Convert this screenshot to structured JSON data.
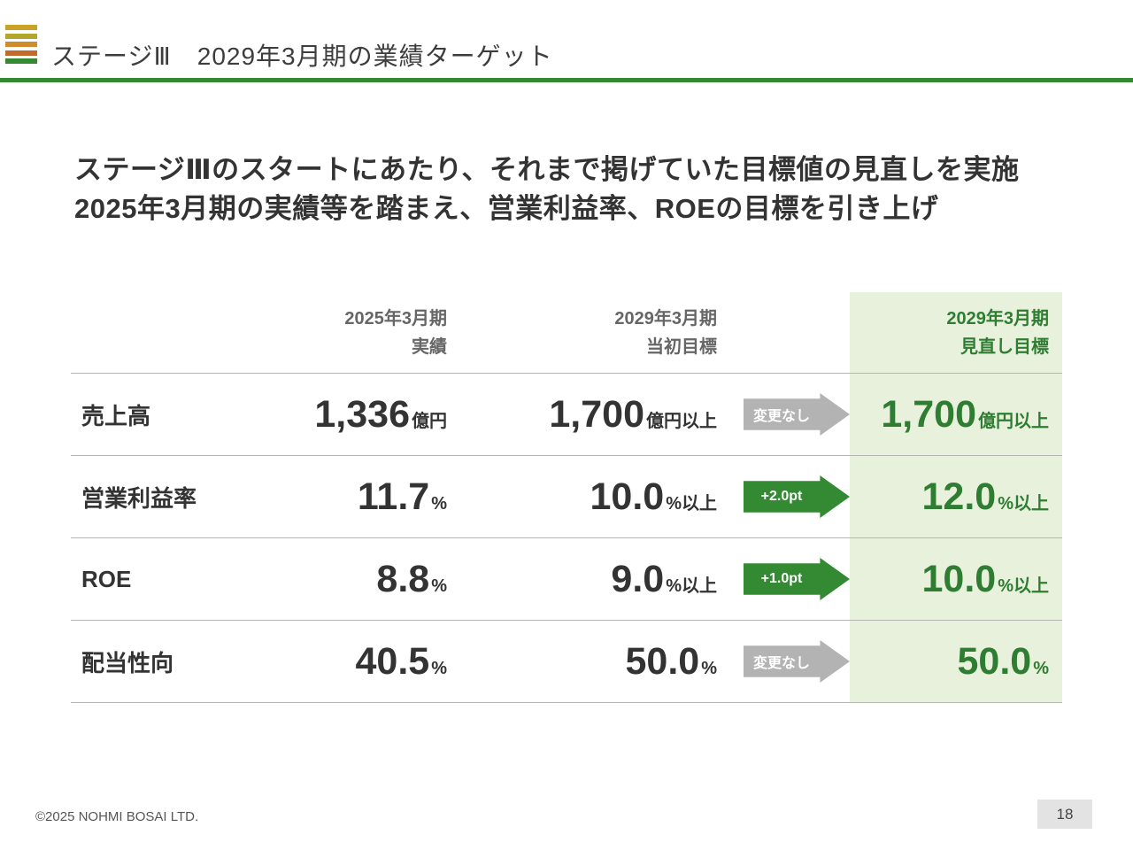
{
  "slide": {
    "title": "ステージⅢ　2029年3月期の業績ターゲット",
    "lead_line1": "ステージⅢのスタートにあたり、それまで掲げていた目標値の見直しを実施",
    "lead_line2": "2025年3月期の実績等を踏まえ、営業利益率、ROEの目標を引き上げ"
  },
  "table": {
    "headers": {
      "actual": {
        "line1": "2025年3月期",
        "line2": "実績"
      },
      "initial": {
        "line1": "2029年3月期",
        "line2": "当初目標"
      },
      "revised": {
        "line1": "2029年3月期",
        "line2": "見直し目標"
      }
    },
    "rows": [
      {
        "label": "売上高",
        "actual": {
          "value": "1,336",
          "unit": "億円"
        },
        "initial": {
          "value": "1,700",
          "unit": "億円以上"
        },
        "change": {
          "label": "変更なし",
          "variant": "none"
        },
        "revised": {
          "value": "1,700",
          "unit": "億円以上"
        }
      },
      {
        "label": "営業利益率",
        "actual": {
          "value": "11.7",
          "unit": "%"
        },
        "initial": {
          "value": "10.0",
          "unit": "%以上"
        },
        "change": {
          "label": "+2.0pt",
          "variant": "up"
        },
        "revised": {
          "value": "12.0",
          "unit": "%以上"
        }
      },
      {
        "label": "ROE",
        "actual": {
          "value": "8.8",
          "unit": "%"
        },
        "initial": {
          "value": "9.0",
          "unit": "%以上"
        },
        "change": {
          "label": "+1.0pt",
          "variant": "up"
        },
        "revised": {
          "value": "10.0",
          "unit": "%以上"
        }
      },
      {
        "label": "配当性向",
        "actual": {
          "value": "40.5",
          "unit": "%"
        },
        "initial": {
          "value": "50.0",
          "unit": "%"
        },
        "change": {
          "label": "変更なし",
          "variant": "none"
        },
        "revised": {
          "value": "50.0",
          "unit": "%"
        }
      }
    ]
  },
  "footer": {
    "copyright": "©2025 NOHMI BOSAI LTD.",
    "page_number": "18"
  },
  "colors": {
    "accent_green": "#338a33",
    "text_green": "#2e7d32",
    "highlight_bg": "#e8f1dc",
    "arrow_gray": "#b3b3b3"
  }
}
